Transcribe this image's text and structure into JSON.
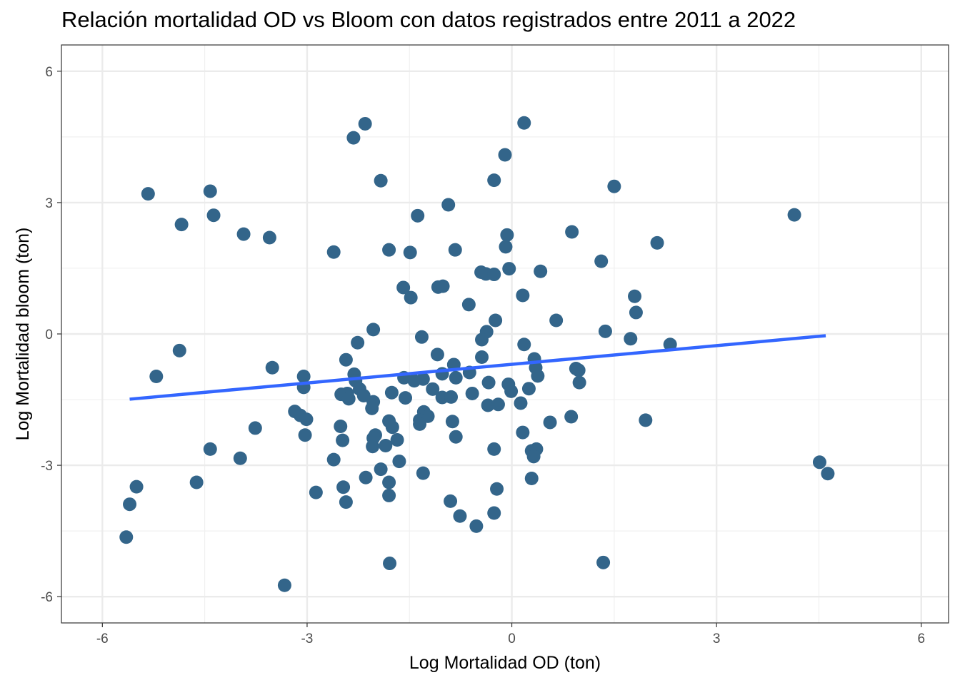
{
  "chart_data": {
    "type": "scatter",
    "title": "Relación mortalidad OD vs Bloom con datos registrados entre 2011 a 2022",
    "xlabel": "Log Mortalidad OD (ton)",
    "ylabel": "Log Mortalidad bloom (ton)",
    "xlim": [
      -6.6,
      6.4
    ],
    "ylim": [
      -6.6,
      6.6
    ],
    "xticks": [
      -6,
      -3,
      0,
      3,
      6
    ],
    "yticks": [
      -6,
      -3,
      0,
      3,
      6
    ],
    "grid": true,
    "point_color": "#33658a",
    "trendline_color": "#3366ff",
    "trendline": {
      "x": [
        -5.6,
        4.6
      ],
      "y": [
        -1.49,
        -0.04
      ]
    },
    "points": [
      [
        -5.33,
        3.2
      ],
      [
        -4.84,
        2.5
      ],
      [
        -4.42,
        3.26
      ],
      [
        -4.37,
        2.71
      ],
      [
        -3.93,
        2.28
      ],
      [
        -3.55,
        2.2
      ],
      [
        -2.61,
        1.87
      ],
      [
        -2.32,
        4.48
      ],
      [
        -2.15,
        4.8
      ],
      [
        -1.92,
        3.5
      ],
      [
        -1.8,
        1.92
      ],
      [
        -1.49,
        1.86
      ],
      [
        -1.38,
        2.7
      ],
      [
        -0.93,
        2.95
      ],
      [
        0.18,
        4.82
      ],
      [
        -0.1,
        4.09
      ],
      [
        -0.26,
        3.51
      ],
      [
        1.5,
        3.37
      ],
      [
        4.14,
        2.72
      ],
      [
        0.88,
        2.33
      ],
      [
        -0.07,
        2.26
      ],
      [
        -0.09,
        1.99
      ],
      [
        -0.83,
        1.92
      ],
      [
        2.13,
        2.08
      ],
      [
        1.31,
        1.66
      ],
      [
        -0.45,
        1.41
      ],
      [
        -0.38,
        1.37
      ],
      [
        -0.26,
        1.36
      ],
      [
        -0.04,
        1.49
      ],
      [
        0.42,
        1.43
      ],
      [
        -1.59,
        1.06
      ],
      [
        -1.08,
        1.07
      ],
      [
        -1.01,
        1.09
      ],
      [
        -1.48,
        0.83
      ],
      [
        0.16,
        0.88
      ],
      [
        -0.63,
        0.67
      ],
      [
        1.8,
        0.86
      ],
      [
        -0.24,
        0.31
      ],
      [
        0.65,
        0.31
      ],
      [
        1.82,
        0.49
      ],
      [
        -2.03,
        0.1
      ],
      [
        -1.32,
        -0.07
      ],
      [
        -0.37,
        0.05
      ],
      [
        -0.44,
        -0.13
      ],
      [
        1.37,
        0.06
      ],
      [
        1.74,
        -0.11
      ],
      [
        -2.26,
        -0.2
      ],
      [
        0.18,
        -0.24
      ],
      [
        2.32,
        -0.24
      ],
      [
        -4.87,
        -0.38
      ],
      [
        -1.09,
        -0.47
      ],
      [
        -0.44,
        -0.53
      ],
      [
        0.33,
        -0.57
      ],
      [
        -2.43,
        -0.59
      ],
      [
        -0.85,
        -0.7
      ],
      [
        0.35,
        -0.77
      ],
      [
        0.94,
        -0.79
      ],
      [
        0.98,
        -0.83
      ],
      [
        -3.51,
        -0.77
      ],
      [
        -5.21,
        -0.97
      ],
      [
        -3.05,
        -0.97
      ],
      [
        -2.31,
        -0.92
      ],
      [
        -1.02,
        -0.91
      ],
      [
        -0.62,
        -0.88
      ],
      [
        -0.82,
        -1.0
      ],
      [
        -1.58,
        -1.0
      ],
      [
        -1.3,
        -1.03
      ],
      [
        -1.43,
        -1.07
      ],
      [
        -2.29,
        -1.07
      ],
      [
        -0.34,
        -1.11
      ],
      [
        0.38,
        -0.96
      ],
      [
        -0.05,
        -1.15
      ],
      [
        0.99,
        -1.11
      ],
      [
        -3.05,
        -1.22
      ],
      [
        -2.23,
        -1.26
      ],
      [
        -1.16,
        -1.26
      ],
      [
        0.25,
        -1.25
      ],
      [
        -0.01,
        -1.31
      ],
      [
        -2.41,
        -1.36
      ],
      [
        -2.5,
        -1.38
      ],
      [
        -2.17,
        -1.41
      ],
      [
        -1.76,
        -1.34
      ],
      [
        -0.58,
        -1.36
      ],
      [
        -1.02,
        -1.45
      ],
      [
        -0.89,
        -1.44
      ],
      [
        -2.39,
        -1.48
      ],
      [
        -1.56,
        -1.46
      ],
      [
        -2.03,
        -1.55
      ],
      [
        0.13,
        -1.58
      ],
      [
        -0.35,
        -1.63
      ],
      [
        -0.2,
        -1.61
      ],
      [
        -2.05,
        -1.7
      ],
      [
        -3.18,
        -1.77
      ],
      [
        -3.1,
        -1.86
      ],
      [
        -1.29,
        -1.78
      ],
      [
        -1.23,
        -1.88
      ],
      [
        -1.35,
        -1.97
      ],
      [
        -3.01,
        -1.95
      ],
      [
        -1.8,
        -1.99
      ],
      [
        -0.87,
        -2.0
      ],
      [
        0.56,
        -2.02
      ],
      [
        0.87,
        -1.89
      ],
      [
        1.96,
        -1.97
      ],
      [
        -1.35,
        -2.06
      ],
      [
        -3.76,
        -2.15
      ],
      [
        -2.51,
        -2.11
      ],
      [
        -1.75,
        -2.13
      ],
      [
        -2.0,
        -2.31
      ],
      [
        -3.03,
        -2.31
      ],
      [
        0.16,
        -2.25
      ],
      [
        -0.82,
        -2.35
      ],
      [
        -2.03,
        -2.38
      ],
      [
        -2.48,
        -2.43
      ],
      [
        -1.68,
        -2.42
      ],
      [
        -1.85,
        -2.55
      ],
      [
        -2.04,
        -2.57
      ],
      [
        -4.42,
        -2.63
      ],
      [
        -0.26,
        -2.63
      ],
      [
        0.36,
        -2.63
      ],
      [
        0.29,
        -2.67
      ],
      [
        -2.61,
        -2.87
      ],
      [
        -3.98,
        -2.84
      ],
      [
        -1.65,
        -2.91
      ],
      [
        0.32,
        -2.8
      ],
      [
        -1.92,
        -3.09
      ],
      [
        -1.3,
        -3.18
      ],
      [
        -2.14,
        -3.28
      ],
      [
        0.29,
        -3.3
      ],
      [
        -4.62,
        -3.39
      ],
      [
        -1.8,
        -3.39
      ],
      [
        -2.47,
        -3.5
      ],
      [
        -5.5,
        -3.49
      ],
      [
        -0.22,
        -3.54
      ],
      [
        -2.87,
        -3.62
      ],
      [
        -1.8,
        -3.69
      ],
      [
        -2.43,
        -3.84
      ],
      [
        -0.9,
        -3.82
      ],
      [
        -5.6,
        -3.89
      ],
      [
        -0.76,
        -4.16
      ],
      [
        -0.26,
        -4.09
      ],
      [
        -0.52,
        -4.39
      ],
      [
        -5.65,
        -4.64
      ],
      [
        -1.79,
        -5.24
      ],
      [
        1.34,
        -5.22
      ],
      [
        -3.33,
        -5.74
      ],
      [
        4.51,
        -2.93
      ],
      [
        4.63,
        -3.19
      ]
    ]
  }
}
